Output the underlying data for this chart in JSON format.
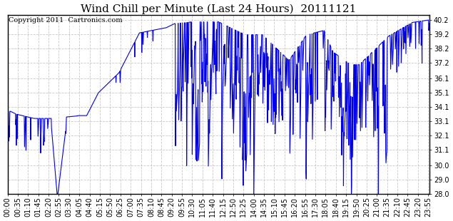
{
  "title": "Wind Chill per Minute (Last 24 Hours)  20111121",
  "copyright_text": "Copyright 2011  Cartronics.com",
  "line_color": "#0000ee",
  "background_color": "#ffffff",
  "grid_color": "#bbbbbb",
  "ylim": [
    28.0,
    40.55
  ],
  "yticks": [
    28.0,
    29.0,
    30.0,
    31.1,
    32.1,
    33.1,
    34.1,
    35.1,
    36.1,
    37.2,
    38.2,
    39.2,
    40.2
  ],
  "title_fontsize": 11,
  "copyright_fontsize": 7,
  "tick_fontsize": 7,
  "linewidth": 0.8
}
